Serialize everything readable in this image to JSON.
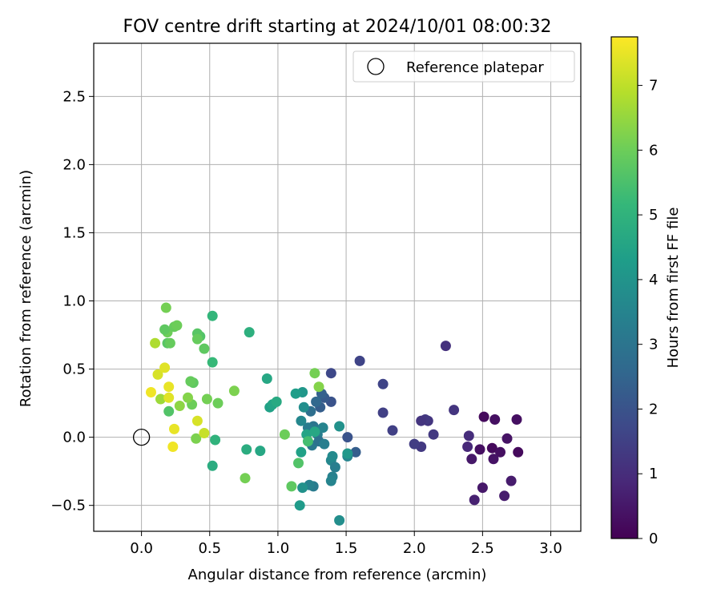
{
  "chart_data": {
    "type": "scatter",
    "title": "FOV centre drift starting at 2024/10/01 08:00:32",
    "xlabel": "Angular distance from reference (arcmin)",
    "ylabel": "Rotation from reference (arcmin)",
    "xlim": [
      -0.35,
      3.22
    ],
    "ylim": [
      -0.69,
      2.89
    ],
    "xticks": [
      0.0,
      0.5,
      1.0,
      1.5,
      2.0,
      2.5,
      3.0
    ],
    "xtick_labels": [
      "0.0",
      "0.5",
      "1.0",
      "1.5",
      "2.0",
      "2.5",
      "3.0"
    ],
    "yticks": [
      -0.5,
      0.0,
      0.5,
      1.0,
      1.5,
      2.0,
      2.5
    ],
    "ytick_labels": [
      "−0.5",
      "0.0",
      "0.5",
      "1.0",
      "1.5",
      "2.0",
      "2.5"
    ],
    "grid": true,
    "legend": {
      "placement": "top-right",
      "label": "Reference platepar"
    },
    "reference_point": {
      "x": 0.0,
      "y": 0.0
    },
    "colorbar": {
      "label": "Hours from first FF file",
      "colormap": "viridis",
      "range": [
        0,
        7.75
      ],
      "ticks": [
        0,
        1,
        2,
        3,
        4,
        5,
        6,
        7
      ],
      "tick_labels": [
        "0",
        "1",
        "2",
        "3",
        "4",
        "5",
        "6",
        "7"
      ],
      "colors": [
        "#440154",
        "#482878",
        "#3e4989",
        "#31688e",
        "#26828e",
        "#1f9e89",
        "#35b779",
        "#6ece58",
        "#b5de2b",
        "#fde725"
      ]
    },
    "points": [
      {
        "x": 2.51,
        "y": 0.15,
        "h": 0.2
      },
      {
        "x": 2.59,
        "y": 0.13,
        "h": 0.3
      },
      {
        "x": 2.75,
        "y": 0.13,
        "h": 0.3
      },
      {
        "x": 2.68,
        "y": -0.01,
        "h": 0.4
      },
      {
        "x": 2.57,
        "y": -0.08,
        "h": 0.2
      },
      {
        "x": 2.48,
        "y": -0.09,
        "h": 0.3
      },
      {
        "x": 2.63,
        "y": -0.11,
        "h": 0.3
      },
      {
        "x": 2.76,
        "y": -0.11,
        "h": 0.2
      },
      {
        "x": 2.58,
        "y": -0.16,
        "h": 0.4
      },
      {
        "x": 2.42,
        "y": -0.16,
        "h": 0.5
      },
      {
        "x": 2.71,
        "y": -0.32,
        "h": 0.6
      },
      {
        "x": 2.5,
        "y": -0.37,
        "h": 0.5
      },
      {
        "x": 2.66,
        "y": -0.43,
        "h": 0.6
      },
      {
        "x": 2.44,
        "y": -0.46,
        "h": 0.7
      },
      {
        "x": 2.39,
        "y": -0.07,
        "h": 0.9
      },
      {
        "x": 2.4,
        "y": 0.01,
        "h": 1.0
      },
      {
        "x": 2.29,
        "y": 0.2,
        "h": 1.2
      },
      {
        "x": 2.23,
        "y": 0.67,
        "h": 1.1
      },
      {
        "x": 2.14,
        "y": 0.02,
        "h": 1.3
      },
      {
        "x": 2.1,
        "y": 0.12,
        "h": 1.2
      },
      {
        "x": 2.08,
        "y": 0.13,
        "h": 1.3
      },
      {
        "x": 2.05,
        "y": 0.12,
        "h": 1.2
      },
      {
        "x": 2.05,
        "y": -0.07,
        "h": 1.3
      },
      {
        "x": 2.0,
        "y": -0.05,
        "h": 1.4
      },
      {
        "x": 1.84,
        "y": 0.05,
        "h": 1.5
      },
      {
        "x": 1.77,
        "y": 0.18,
        "h": 1.5
      },
      {
        "x": 1.77,
        "y": 0.39,
        "h": 1.6
      },
      {
        "x": 1.6,
        "y": 0.56,
        "h": 1.6
      },
      {
        "x": 1.57,
        "y": -0.11,
        "h": 2.3
      },
      {
        "x": 1.51,
        "y": 0.0,
        "h": 2.0
      },
      {
        "x": 1.39,
        "y": 0.47,
        "h": 1.7
      },
      {
        "x": 1.39,
        "y": 0.26,
        "h": 2.0
      },
      {
        "x": 1.34,
        "y": 0.29,
        "h": 2.2
      },
      {
        "x": 1.31,
        "y": 0.22,
        "h": 2.3
      },
      {
        "x": 1.32,
        "y": 0.32,
        "h": 2.4
      },
      {
        "x": 1.28,
        "y": 0.26,
        "h": 2.6
      },
      {
        "x": 1.24,
        "y": 0.19,
        "h": 2.8
      },
      {
        "x": 1.26,
        "y": 0.08,
        "h": 3.0
      },
      {
        "x": 1.22,
        "y": 0.07,
        "h": 3.2
      },
      {
        "x": 1.29,
        "y": 0.02,
        "h": 3.3
      },
      {
        "x": 1.25,
        "y": -0.06,
        "h": 3.1
      },
      {
        "x": 1.3,
        "y": -0.03,
        "h": 2.9
      },
      {
        "x": 1.33,
        "y": 0.07,
        "h": 3.5
      },
      {
        "x": 1.34,
        "y": -0.05,
        "h": 3.3
      },
      {
        "x": 1.39,
        "y": -0.17,
        "h": 3.6
      },
      {
        "x": 1.42,
        "y": -0.22,
        "h": 3.3
      },
      {
        "x": 1.4,
        "y": -0.29,
        "h": 3.4
      },
      {
        "x": 1.39,
        "y": -0.32,
        "h": 3.5
      },
      {
        "x": 1.4,
        "y": -0.14,
        "h": 3.7
      },
      {
        "x": 1.45,
        "y": 0.08,
        "h": 3.9
      },
      {
        "x": 1.45,
        "y": -0.61,
        "h": 3.8
      },
      {
        "x": 1.51,
        "y": -0.14,
        "h": 3.5
      },
      {
        "x": 1.51,
        "y": -0.12,
        "h": 4.1
      },
      {
        "x": 1.26,
        "y": -0.36,
        "h": 3.2
      },
      {
        "x": 1.23,
        "y": -0.35,
        "h": 3.4
      },
      {
        "x": 1.18,
        "y": -0.37,
        "h": 3.9
      },
      {
        "x": 1.16,
        "y": -0.5,
        "h": 4.2
      },
      {
        "x": 1.17,
        "y": 0.12,
        "h": 3.6
      },
      {
        "x": 1.19,
        "y": 0.22,
        "h": 3.8
      },
      {
        "x": 1.18,
        "y": 0.33,
        "h": 4.1
      },
      {
        "x": 1.13,
        "y": 0.32,
        "h": 4.3
      },
      {
        "x": 1.17,
        "y": -0.11,
        "h": 4.4
      },
      {
        "x": 1.21,
        "y": 0.02,
        "h": 4.5
      },
      {
        "x": 1.27,
        "y": 0.04,
        "h": 4.6
      },
      {
        "x": 0.94,
        "y": 0.22,
        "h": 4.4
      },
      {
        "x": 0.96,
        "y": 0.24,
        "h": 4.5
      },
      {
        "x": 0.99,
        "y": 0.26,
        "h": 4.7
      },
      {
        "x": 0.92,
        "y": 0.43,
        "h": 4.6
      },
      {
        "x": 0.87,
        "y": -0.1,
        "h": 4.6
      },
      {
        "x": 0.77,
        "y": -0.09,
        "h": 4.8
      },
      {
        "x": 0.79,
        "y": 0.77,
        "h": 4.9
      },
      {
        "x": 0.52,
        "y": -0.21,
        "h": 4.8
      },
      {
        "x": 0.54,
        "y": -0.02,
        "h": 5.0
      },
      {
        "x": 0.52,
        "y": 0.55,
        "h": 5.2
      },
      {
        "x": 0.52,
        "y": 0.89,
        "h": 5.1
      },
      {
        "x": 1.22,
        "y": -0.03,
        "h": 5.4
      },
      {
        "x": 1.15,
        "y": -0.19,
        "h": 5.6
      },
      {
        "x": 1.1,
        "y": -0.36,
        "h": 5.8
      },
      {
        "x": 1.05,
        "y": 0.02,
        "h": 6.0
      },
      {
        "x": 1.27,
        "y": 0.47,
        "h": 6.1
      },
      {
        "x": 1.3,
        "y": 0.37,
        "h": 6.3
      },
      {
        "x": 0.76,
        "y": -0.3,
        "h": 6.1
      },
      {
        "x": 0.68,
        "y": 0.34,
        "h": 6.2
      },
      {
        "x": 0.56,
        "y": 0.25,
        "h": 6.0
      },
      {
        "x": 0.48,
        "y": 0.28,
        "h": 6.1
      },
      {
        "x": 0.46,
        "y": 0.65,
        "h": 5.8
      },
      {
        "x": 0.43,
        "y": 0.74,
        "h": 5.6
      },
      {
        "x": 0.41,
        "y": 0.76,
        "h": 5.7
      },
      {
        "x": 0.41,
        "y": 0.72,
        "h": 5.9
      },
      {
        "x": 0.38,
        "y": 0.4,
        "h": 5.8
      },
      {
        "x": 0.36,
        "y": 0.41,
        "h": 5.9
      },
      {
        "x": 0.37,
        "y": 0.24,
        "h": 6.0
      },
      {
        "x": 0.34,
        "y": 0.29,
        "h": 6.3
      },
      {
        "x": 0.4,
        "y": -0.01,
        "h": 6.2
      },
      {
        "x": 0.28,
        "y": 0.23,
        "h": 6.4
      },
      {
        "x": 0.2,
        "y": 0.19,
        "h": 5.6
      },
      {
        "x": 0.19,
        "y": 0.69,
        "h": 5.7
      },
      {
        "x": 0.21,
        "y": 0.69,
        "h": 5.9
      },
      {
        "x": 0.19,
        "y": 0.77,
        "h": 6.0
      },
      {
        "x": 0.17,
        "y": 0.79,
        "h": 5.8
      },
      {
        "x": 0.24,
        "y": 0.81,
        "h": 5.9
      },
      {
        "x": 0.26,
        "y": 0.82,
        "h": 6.0
      },
      {
        "x": 0.18,
        "y": 0.95,
        "h": 6.1
      },
      {
        "x": 0.14,
        "y": 0.28,
        "h": 6.6
      },
      {
        "x": 0.1,
        "y": 0.69,
        "h": 6.8
      },
      {
        "x": 0.12,
        "y": 0.46,
        "h": 7.3
      },
      {
        "x": 0.17,
        "y": 0.51,
        "h": 7.4
      },
      {
        "x": 0.2,
        "y": 0.37,
        "h": 7.5
      },
      {
        "x": 0.2,
        "y": 0.29,
        "h": 7.4
      },
      {
        "x": 0.07,
        "y": 0.33,
        "h": 7.6
      },
      {
        "x": 0.24,
        "y": 0.06,
        "h": 7.5
      },
      {
        "x": 0.23,
        "y": -0.07,
        "h": 7.6
      },
      {
        "x": 0.41,
        "y": 0.12,
        "h": 7.3
      },
      {
        "x": 0.46,
        "y": 0.03,
        "h": 7.1
      }
    ]
  }
}
